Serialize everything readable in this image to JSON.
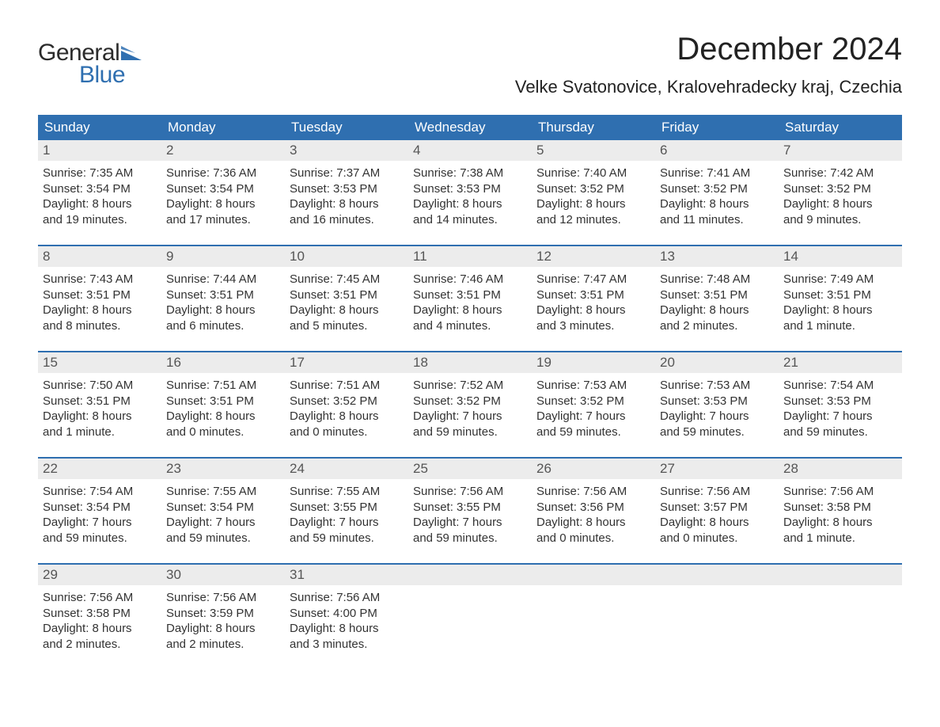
{
  "logo": {
    "general": "General",
    "blue": "Blue",
    "flag_color": "#2f6fb0"
  },
  "header": {
    "title": "December 2024",
    "location": "Velke Svatonovice, Kralovehradecky kraj, Czechia"
  },
  "colors": {
    "header_bg": "#2f6fb0",
    "header_text": "#ffffff",
    "daynum_bg": "#ececec",
    "week_border": "#2f6fb0",
    "body_text": "#333333"
  },
  "weekdays": [
    "Sunday",
    "Monday",
    "Tuesday",
    "Wednesday",
    "Thursday",
    "Friday",
    "Saturday"
  ],
  "weeks": [
    [
      {
        "n": "1",
        "sunrise": "Sunrise: 7:35 AM",
        "sunset": "Sunset: 3:54 PM",
        "d1": "Daylight: 8 hours",
        "d2": "and 19 minutes."
      },
      {
        "n": "2",
        "sunrise": "Sunrise: 7:36 AM",
        "sunset": "Sunset: 3:54 PM",
        "d1": "Daylight: 8 hours",
        "d2": "and 17 minutes."
      },
      {
        "n": "3",
        "sunrise": "Sunrise: 7:37 AM",
        "sunset": "Sunset: 3:53 PM",
        "d1": "Daylight: 8 hours",
        "d2": "and 16 minutes."
      },
      {
        "n": "4",
        "sunrise": "Sunrise: 7:38 AM",
        "sunset": "Sunset: 3:53 PM",
        "d1": "Daylight: 8 hours",
        "d2": "and 14 minutes."
      },
      {
        "n": "5",
        "sunrise": "Sunrise: 7:40 AM",
        "sunset": "Sunset: 3:52 PM",
        "d1": "Daylight: 8 hours",
        "d2": "and 12 minutes."
      },
      {
        "n": "6",
        "sunrise": "Sunrise: 7:41 AM",
        "sunset": "Sunset: 3:52 PM",
        "d1": "Daylight: 8 hours",
        "d2": "and 11 minutes."
      },
      {
        "n": "7",
        "sunrise": "Sunrise: 7:42 AM",
        "sunset": "Sunset: 3:52 PM",
        "d1": "Daylight: 8 hours",
        "d2": "and 9 minutes."
      }
    ],
    [
      {
        "n": "8",
        "sunrise": "Sunrise: 7:43 AM",
        "sunset": "Sunset: 3:51 PM",
        "d1": "Daylight: 8 hours",
        "d2": "and 8 minutes."
      },
      {
        "n": "9",
        "sunrise": "Sunrise: 7:44 AM",
        "sunset": "Sunset: 3:51 PM",
        "d1": "Daylight: 8 hours",
        "d2": "and 6 minutes."
      },
      {
        "n": "10",
        "sunrise": "Sunrise: 7:45 AM",
        "sunset": "Sunset: 3:51 PM",
        "d1": "Daylight: 8 hours",
        "d2": "and 5 minutes."
      },
      {
        "n": "11",
        "sunrise": "Sunrise: 7:46 AM",
        "sunset": "Sunset: 3:51 PM",
        "d1": "Daylight: 8 hours",
        "d2": "and 4 minutes."
      },
      {
        "n": "12",
        "sunrise": "Sunrise: 7:47 AM",
        "sunset": "Sunset: 3:51 PM",
        "d1": "Daylight: 8 hours",
        "d2": "and 3 minutes."
      },
      {
        "n": "13",
        "sunrise": "Sunrise: 7:48 AM",
        "sunset": "Sunset: 3:51 PM",
        "d1": "Daylight: 8 hours",
        "d2": "and 2 minutes."
      },
      {
        "n": "14",
        "sunrise": "Sunrise: 7:49 AM",
        "sunset": "Sunset: 3:51 PM",
        "d1": "Daylight: 8 hours",
        "d2": "and 1 minute."
      }
    ],
    [
      {
        "n": "15",
        "sunrise": "Sunrise: 7:50 AM",
        "sunset": "Sunset: 3:51 PM",
        "d1": "Daylight: 8 hours",
        "d2": "and 1 minute."
      },
      {
        "n": "16",
        "sunrise": "Sunrise: 7:51 AM",
        "sunset": "Sunset: 3:51 PM",
        "d1": "Daylight: 8 hours",
        "d2": "and 0 minutes."
      },
      {
        "n": "17",
        "sunrise": "Sunrise: 7:51 AM",
        "sunset": "Sunset: 3:52 PM",
        "d1": "Daylight: 8 hours",
        "d2": "and 0 minutes."
      },
      {
        "n": "18",
        "sunrise": "Sunrise: 7:52 AM",
        "sunset": "Sunset: 3:52 PM",
        "d1": "Daylight: 7 hours",
        "d2": "and 59 minutes."
      },
      {
        "n": "19",
        "sunrise": "Sunrise: 7:53 AM",
        "sunset": "Sunset: 3:52 PM",
        "d1": "Daylight: 7 hours",
        "d2": "and 59 minutes."
      },
      {
        "n": "20",
        "sunrise": "Sunrise: 7:53 AM",
        "sunset": "Sunset: 3:53 PM",
        "d1": "Daylight: 7 hours",
        "d2": "and 59 minutes."
      },
      {
        "n": "21",
        "sunrise": "Sunrise: 7:54 AM",
        "sunset": "Sunset: 3:53 PM",
        "d1": "Daylight: 7 hours",
        "d2": "and 59 minutes."
      }
    ],
    [
      {
        "n": "22",
        "sunrise": "Sunrise: 7:54 AM",
        "sunset": "Sunset: 3:54 PM",
        "d1": "Daylight: 7 hours",
        "d2": "and 59 minutes."
      },
      {
        "n": "23",
        "sunrise": "Sunrise: 7:55 AM",
        "sunset": "Sunset: 3:54 PM",
        "d1": "Daylight: 7 hours",
        "d2": "and 59 minutes."
      },
      {
        "n": "24",
        "sunrise": "Sunrise: 7:55 AM",
        "sunset": "Sunset: 3:55 PM",
        "d1": "Daylight: 7 hours",
        "d2": "and 59 minutes."
      },
      {
        "n": "25",
        "sunrise": "Sunrise: 7:56 AM",
        "sunset": "Sunset: 3:55 PM",
        "d1": "Daylight: 7 hours",
        "d2": "and 59 minutes."
      },
      {
        "n": "26",
        "sunrise": "Sunrise: 7:56 AM",
        "sunset": "Sunset: 3:56 PM",
        "d1": "Daylight: 8 hours",
        "d2": "and 0 minutes."
      },
      {
        "n": "27",
        "sunrise": "Sunrise: 7:56 AM",
        "sunset": "Sunset: 3:57 PM",
        "d1": "Daylight: 8 hours",
        "d2": "and 0 minutes."
      },
      {
        "n": "28",
        "sunrise": "Sunrise: 7:56 AM",
        "sunset": "Sunset: 3:58 PM",
        "d1": "Daylight: 8 hours",
        "d2": "and 1 minute."
      }
    ],
    [
      {
        "n": "29",
        "sunrise": "Sunrise: 7:56 AM",
        "sunset": "Sunset: 3:58 PM",
        "d1": "Daylight: 8 hours",
        "d2": "and 2 minutes."
      },
      {
        "n": "30",
        "sunrise": "Sunrise: 7:56 AM",
        "sunset": "Sunset: 3:59 PM",
        "d1": "Daylight: 8 hours",
        "d2": "and 2 minutes."
      },
      {
        "n": "31",
        "sunrise": "Sunrise: 7:56 AM",
        "sunset": "Sunset: 4:00 PM",
        "d1": "Daylight: 8 hours",
        "d2": "and 3 minutes."
      },
      null,
      null,
      null,
      null
    ]
  ]
}
